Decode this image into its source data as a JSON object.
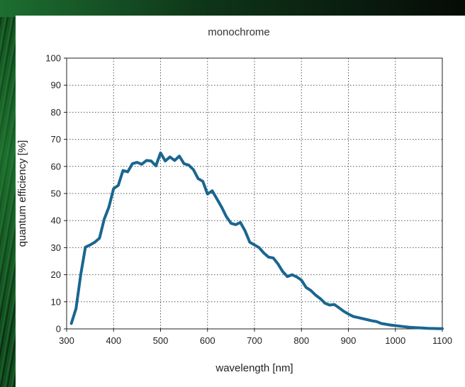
{
  "chart_data": {
    "type": "line",
    "title": "monochrome",
    "xlabel": "wavelength [nm]",
    "ylabel": "quantum efficiency [%]",
    "xlim": [
      300,
      1100
    ],
    "ylim": [
      0,
      100
    ],
    "xticks": [
      300,
      400,
      500,
      600,
      700,
      800,
      900,
      1000,
      1100
    ],
    "yticks": [
      0,
      10,
      20,
      30,
      40,
      50,
      60,
      70,
      80,
      90,
      100
    ],
    "grid": true,
    "line_color": "#1a6690",
    "series": [
      {
        "x": [
          310,
          320,
          330,
          340,
          350,
          360,
          370,
          380,
          390,
          400,
          410,
          420,
          430,
          440,
          450,
          460,
          470,
          480,
          490,
          500,
          510,
          520,
          530,
          540,
          550,
          560,
          570,
          580,
          590,
          600,
          610,
          620,
          630,
          640,
          650,
          660,
          670,
          680,
          690,
          700,
          710,
          720,
          730,
          740,
          750,
          760,
          770,
          780,
          790,
          800,
          810,
          820,
          830,
          840,
          850,
          860,
          870,
          880,
          890,
          900,
          910,
          920,
          930,
          940,
          950,
          960,
          970,
          980,
          990,
          1000,
          1010,
          1020,
          1030,
          1040,
          1050,
          1060,
          1070,
          1080,
          1090,
          1100
        ],
        "y": [
          2,
          7.5,
          20,
          30.2,
          31,
          32,
          33.5,
          40.5,
          45,
          51.8,
          53,
          58.5,
          58,
          61,
          61.5,
          60.8,
          62.2,
          62,
          60.2,
          65,
          62,
          63.5,
          62.2,
          63.8,
          61,
          60.5,
          58.8,
          55.5,
          54.5,
          49.8,
          51,
          48,
          45,
          41.5,
          39,
          38.5,
          39.3,
          36.2,
          32,
          31,
          30,
          28,
          26.5,
          26.2,
          24,
          21.2,
          19.3,
          20,
          19.2,
          18,
          15.3,
          14.2,
          12.5,
          11.2,
          9.5,
          8.8,
          9,
          7.8,
          6.5,
          5.5,
          4.6,
          4.2,
          3.8,
          3.4,
          3.0,
          2.7,
          2.0,
          1.7,
          1.4,
          1.2,
          1.0,
          0.8,
          0.6,
          0.5,
          0.4,
          0.3,
          0.2,
          0.15,
          0.1,
          0.1
        ]
      }
    ]
  }
}
